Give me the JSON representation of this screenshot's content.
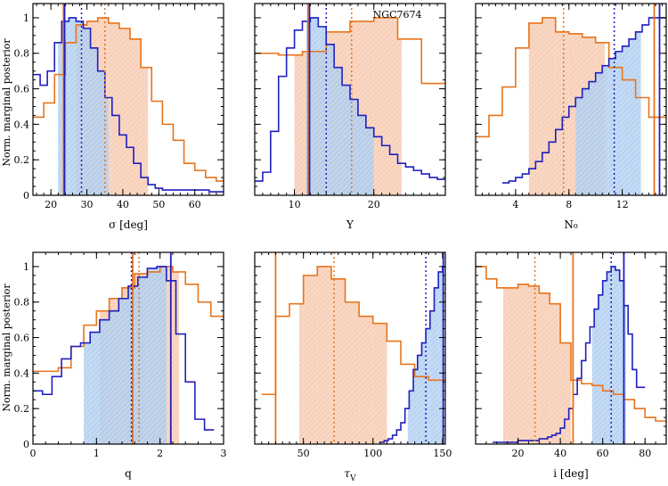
{
  "figure": {
    "ylabel": "Norm. marginal posterior",
    "colors": {
      "blue": "#1f1fbf",
      "orange": "#e8741c",
      "blue_fill": "#b8d4f2",
      "orange_fill": "#f8d3bd"
    }
  },
  "chart_data": [
    {
      "type": "step",
      "title": "",
      "annotation": "",
      "xlabel": "σ [deg]",
      "ylabel": "Norm. marginal posterior",
      "xlim": [
        15,
        68
      ],
      "ylim": [
        0,
        1.08
      ],
      "xticks": [
        20,
        30,
        40,
        50,
        60
      ],
      "xtick_labels": [
        "20",
        "30",
        "40",
        "50",
        "60"
      ],
      "yticks": [
        0,
        0.2,
        0.4,
        0.6,
        0.8,
        1
      ],
      "ytick_labels": [
        "0",
        "0.2",
        "0.4",
        "0.6",
        "0.8",
        "1"
      ],
      "series": [
        {
          "name": "orange",
          "edges": [
            15,
            18,
            21,
            24,
            27,
            30,
            33,
            36,
            39,
            42,
            45,
            48,
            51,
            54,
            57,
            60,
            63,
            66,
            68
          ],
          "values": [
            0.44,
            0.52,
            0.68,
            0.86,
            0.96,
            0.98,
            1.0,
            0.97,
            0.94,
            0.88,
            0.72,
            0.53,
            0.4,
            0.31,
            0.18,
            0.14,
            0.1,
            0.08
          ]
        },
        {
          "name": "blue",
          "edges": [
            15,
            17,
            19,
            21,
            23,
            25,
            27,
            29,
            31,
            33,
            35,
            37,
            39,
            41,
            43,
            45,
            47,
            49,
            51,
            53,
            55,
            58,
            61,
            64,
            68
          ],
          "values": [
            0.68,
            0.62,
            0.7,
            0.86,
            0.98,
            1.0,
            0.98,
            0.94,
            0.83,
            0.7,
            0.55,
            0.45,
            0.34,
            0.27,
            0.18,
            0.1,
            0.06,
            0.04,
            0.03,
            0.03,
            0.03,
            0.03,
            0.03,
            0.02
          ]
        }
      ],
      "shaded": [
        {
          "series": "orange",
          "from": 27,
          "to": 47
        },
        {
          "series": "blue",
          "from": 22,
          "to": 36
        }
      ],
      "vlines": [
        {
          "series": "orange",
          "x": 23.5,
          "style": "solid"
        },
        {
          "series": "orange",
          "x": 35,
          "style": "dotted"
        },
        {
          "series": "blue",
          "x": 23.8,
          "style": "solid"
        },
        {
          "series": "blue",
          "x": 28.5,
          "style": "dotted"
        }
      ]
    },
    {
      "type": "step",
      "title": "",
      "annotation": "NGC7674",
      "xlabel": "Y",
      "ylabel": "",
      "xlim": [
        5,
        29
      ],
      "ylim": [
        0,
        1.08
      ],
      "xticks": [
        10,
        20
      ],
      "xtick_labels": [
        "10",
        "20"
      ],
      "yticks": [
        0,
        0.2,
        0.4,
        0.6,
        0.8,
        1
      ],
      "ytick_labels": [],
      "series": [
        {
          "name": "orange",
          "edges": [
            5,
            8,
            11,
            14,
            17,
            20,
            23,
            26,
            29
          ],
          "values": [
            0.8,
            0.79,
            0.81,
            0.92,
            0.98,
            1.0,
            0.88,
            0.63
          ]
        },
        {
          "name": "blue",
          "edges": [
            5,
            6,
            7,
            8,
            9,
            10,
            11,
            12,
            13,
            14,
            15,
            16,
            17,
            18,
            19,
            20,
            21,
            22,
            23,
            24,
            25,
            26,
            27,
            28,
            29
          ],
          "values": [
            0.08,
            0.13,
            0.36,
            0.67,
            0.83,
            0.93,
            0.98,
            1.0,
            0.95,
            0.85,
            0.72,
            0.62,
            0.54,
            0.45,
            0.38,
            0.33,
            0.28,
            0.23,
            0.18,
            0.16,
            0.14,
            0.12,
            0.1,
            0.09
          ]
        }
      ],
      "shaded": [
        {
          "series": "orange",
          "from": 10,
          "to": 23.5
        },
        {
          "series": "blue",
          "from": 11.5,
          "to": 20
        }
      ],
      "vlines": [
        {
          "series": "orange",
          "x": 11.7,
          "style": "solid"
        },
        {
          "series": "orange",
          "x": 17.2,
          "style": "dotted"
        },
        {
          "series": "blue",
          "x": 11.9,
          "style": "solid"
        },
        {
          "series": "blue",
          "x": 14,
          "style": "dotted"
        }
      ]
    },
    {
      "type": "step",
      "title": "",
      "annotation": "",
      "xlabel": "N₀",
      "ylabel": "",
      "xlim": [
        1,
        15.3
      ],
      "ylim": [
        0,
        1.08
      ],
      "xticks": [
        4,
        8,
        12
      ],
      "xtick_labels": [
        "4",
        "8",
        "12"
      ],
      "yticks": [
        0,
        0.2,
        0.4,
        0.6,
        0.8,
        1
      ],
      "ytick_labels": [],
      "series": [
        {
          "name": "orange",
          "edges": [
            1,
            2,
            3,
            4,
            5,
            6,
            7,
            8,
            9,
            10,
            11,
            12,
            13,
            14,
            15.3
          ],
          "values": [
            0.33,
            0.45,
            0.61,
            0.83,
            0.97,
            1.0,
            0.92,
            0.91,
            0.89,
            0.86,
            0.72,
            0.65,
            0.55,
            0.44
          ]
        },
        {
          "name": "blue",
          "edges": [
            3,
            3.5,
            4,
            4.5,
            5,
            5.5,
            6,
            6.5,
            7,
            7.5,
            8,
            8.5,
            9,
            9.5,
            10,
            10.5,
            11,
            11.5,
            12,
            12.5,
            13,
            13.5,
            14,
            14.5,
            15.3
          ],
          "values": [
            0.07,
            0.08,
            0.1,
            0.12,
            0.15,
            0.19,
            0.24,
            0.3,
            0.37,
            0.44,
            0.5,
            0.55,
            0.6,
            0.64,
            0.69,
            0.73,
            0.77,
            0.81,
            0.84,
            0.88,
            0.92,
            0.96,
            1.0,
            1.0
          ]
        }
      ],
      "shaded": [
        {
          "series": "orange",
          "from": 5,
          "to": 10.7
        },
        {
          "series": "blue",
          "from": 8.5,
          "to": 13.4
        }
      ],
      "vlines": [
        {
          "series": "orange",
          "x": 14.4,
          "style": "solid"
        },
        {
          "series": "orange",
          "x": 7.6,
          "style": "dotted"
        },
        {
          "series": "blue",
          "x": 14.8,
          "style": "solid"
        },
        {
          "series": "blue",
          "x": 11.4,
          "style": "dotted"
        }
      ]
    },
    {
      "type": "step",
      "title": "",
      "annotation": "",
      "xlabel": "q",
      "ylabel": "Norm. marginal posterior",
      "xlim": [
        0,
        3
      ],
      "ylim": [
        0,
        1.08
      ],
      "xticks": [
        0,
        1,
        2,
        3
      ],
      "xtick_labels": [
        "0",
        "1",
        "2",
        "3"
      ],
      "yticks": [
        0,
        0.2,
        0.4,
        0.6,
        0.8,
        1
      ],
      "ytick_labels": [
        "0",
        "0.2",
        "0.4",
        "0.6",
        "0.8",
        "1"
      ],
      "series": [
        {
          "name": "orange",
          "edges": [
            0,
            0.2,
            0.4,
            0.6,
            0.8,
            1.0,
            1.2,
            1.4,
            1.6,
            1.8,
            2.0,
            2.2,
            2.4,
            2.6,
            2.8,
            3.0
          ],
          "values": [
            0.41,
            0.41,
            0.43,
            0.55,
            0.67,
            0.75,
            0.82,
            0.88,
            0.96,
            0.97,
            1.0,
            0.97,
            0.9,
            0.8,
            0.72
          ]
        },
        {
          "name": "blue",
          "edges": [
            0,
            0.15,
            0.3,
            0.45,
            0.6,
            0.75,
            0.9,
            1.05,
            1.2,
            1.35,
            1.5,
            1.65,
            1.8,
            1.95,
            2.1,
            2.25,
            2.4,
            2.55,
            2.7,
            2.85
          ],
          "values": [
            0.3,
            0.28,
            0.38,
            0.48,
            0.55,
            0.57,
            0.63,
            0.7,
            0.75,
            0.82,
            0.89,
            0.94,
            0.99,
            1.0,
            0.92,
            0.62,
            0.35,
            0.14,
            0.08
          ]
        }
      ],
      "shaded": [
        {
          "series": "orange",
          "from": 1.05,
          "to": 2.3
        },
        {
          "series": "blue",
          "from": 0.8,
          "to": 2.1
        }
      ],
      "vlines": [
        {
          "series": "orange",
          "x": 1.57,
          "style": "solid"
        },
        {
          "series": "orange",
          "x": 1.67,
          "style": "dotted"
        },
        {
          "series": "blue",
          "x": 2.17,
          "style": "solid"
        },
        {
          "series": "blue",
          "x": 1.55,
          "style": "dotted"
        }
      ]
    },
    {
      "type": "step",
      "title": "",
      "annotation": "",
      "xlabel": "τ_V",
      "ylabel": "",
      "xlim": [
        15,
        152
      ],
      "ylim": [
        0,
        1.08
      ],
      "xticks": [
        50,
        100,
        150
      ],
      "xtick_labels": [
        "50",
        "100",
        "150"
      ],
      "yticks": [
        0,
        0.2,
        0.4,
        0.6,
        0.8,
        1
      ],
      "ytick_labels": [],
      "series": [
        {
          "name": "orange",
          "edges": [
            20,
            30,
            40,
            50,
            60,
            70,
            80,
            90,
            100,
            110,
            120,
            130,
            140,
            152
          ],
          "values": [
            0.28,
            0.72,
            0.79,
            0.95,
            1.0,
            0.93,
            0.8,
            0.72,
            0.68,
            0.58,
            0.45,
            0.38,
            0.36
          ]
        },
        {
          "name": "blue",
          "edges": [
            105,
            108,
            111,
            114,
            117,
            120,
            123,
            126,
            129,
            132,
            135,
            138,
            141,
            144,
            147,
            150,
            152
          ],
          "values": [
            0.01,
            0.02,
            0.03,
            0.05,
            0.08,
            0.12,
            0.2,
            0.3,
            0.42,
            0.5,
            0.57,
            0.65,
            0.75,
            0.88,
            0.97,
            1.0
          ]
        }
      ],
      "shaded": [
        {
          "series": "orange",
          "from": 47,
          "to": 110
        },
        {
          "series": "blue",
          "from": 125,
          "to": 150
        }
      ],
      "vlines": [
        {
          "series": "orange",
          "x": 30,
          "style": "solid"
        },
        {
          "series": "orange",
          "x": 72,
          "style": "dotted"
        },
        {
          "series": "blue",
          "x": 150.5,
          "style": "solid"
        },
        {
          "series": "blue",
          "x": 138,
          "style": "dotted"
        }
      ]
    },
    {
      "type": "step",
      "title": "",
      "annotation": "",
      "xlabel": "i [deg]",
      "ylabel": "",
      "xlim": [
        0,
        90
      ],
      "ylim": [
        0,
        1.08
      ],
      "xticks": [
        20,
        40,
        60,
        80
      ],
      "xtick_labels": [
        "20",
        "40",
        "60",
        "80"
      ],
      "yticks": [
        0,
        0.2,
        0.4,
        0.6,
        0.8,
        1
      ],
      "ytick_labels": [],
      "series": [
        {
          "name": "orange",
          "edges": [
            0,
            5,
            10,
            15,
            20,
            25,
            30,
            35,
            40,
            45,
            50,
            55,
            60,
            65,
            70,
            75,
            80,
            85,
            90
          ],
          "values": [
            1.0,
            0.93,
            0.88,
            0.88,
            0.9,
            0.89,
            0.85,
            0.79,
            0.57,
            0.36,
            0.34,
            0.33,
            0.3,
            0.28,
            0.25,
            0.2,
            0.15,
            0.13
          ]
        },
        {
          "name": "blue",
          "edges": [
            8,
            10,
            12,
            14,
            16,
            18,
            20,
            22,
            24,
            26,
            28,
            30,
            32,
            34,
            36,
            38,
            40,
            42,
            44,
            46,
            48,
            50,
            52,
            54,
            56,
            58,
            60,
            62,
            64,
            66,
            68,
            70,
            72,
            74,
            76,
            78,
            80
          ],
          "values": [
            0.01,
            0.01,
            0.01,
            0.01,
            0.01,
            0.01,
            0.02,
            0.02,
            0.02,
            0.02,
            0.02,
            0.03,
            0.03,
            0.04,
            0.05,
            0.06,
            0.09,
            0.14,
            0.2,
            0.28,
            0.37,
            0.47,
            0.57,
            0.66,
            0.76,
            0.84,
            0.92,
            0.97,
            1.0,
            0.98,
            0.92,
            0.78,
            0.62,
            0.42,
            0.32,
            0.32
          ]
        }
      ],
      "shaded": [
        {
          "series": "orange",
          "from": 13,
          "to": 45
        },
        {
          "series": "blue",
          "from": 55,
          "to": 71
        }
      ],
      "vlines": [
        {
          "series": "orange",
          "x": 46,
          "style": "solid"
        },
        {
          "series": "orange",
          "x": 28,
          "style": "dotted"
        },
        {
          "series": "blue",
          "x": 70,
          "style": "solid"
        },
        {
          "series": "blue",
          "x": 64,
          "style": "dotted"
        }
      ]
    }
  ]
}
